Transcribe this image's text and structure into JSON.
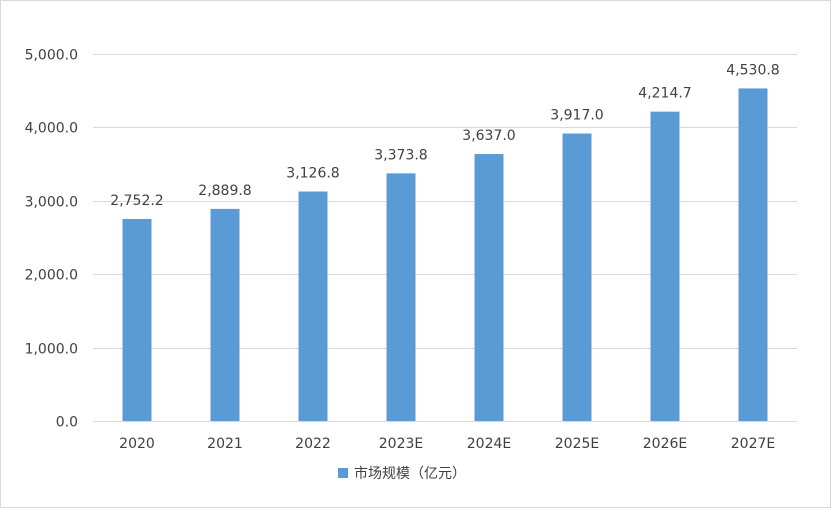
{
  "chart_data": {
    "type": "bar",
    "categories": [
      "2020",
      "2021",
      "2022",
      "2023E",
      "2024E",
      "2025E",
      "2026E",
      "2027E"
    ],
    "series": [
      {
        "name": "市场规模（亿元）",
        "values": [
          2752.2,
          2889.8,
          3126.8,
          3373.8,
          3637.0,
          3917.0,
          4214.7,
          4530.8
        ],
        "color": "#5b9bd5"
      }
    ],
    "data_labels": [
      "2,752.2",
      "2,889.8",
      "3,126.8",
      "3,373.8",
      "3,637.0",
      "3,917.0",
      "4,214.7",
      "4,530.8"
    ],
    "y_ticks": [
      0,
      1000,
      2000,
      3000,
      4000,
      5000
    ],
    "y_tick_labels": [
      "0.0",
      "1,000.0",
      "2,000.0",
      "3,000.0",
      "4,000.0",
      "5,000.0"
    ],
    "ylim": [
      0,
      5000
    ],
    "grid": true,
    "gridline_color": "#d9d9d9",
    "legend_position": "bottom",
    "text_color": "#404040"
  }
}
